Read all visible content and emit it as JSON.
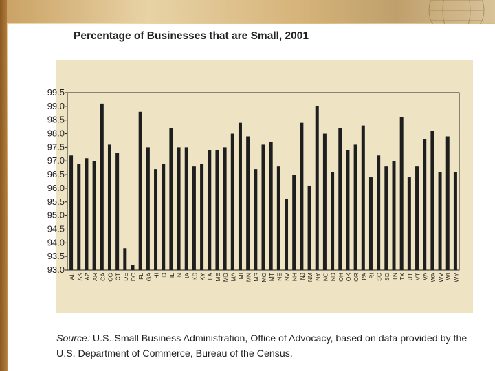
{
  "chart_data": {
    "type": "bar",
    "title": "Percentage of Businesses that are Small, 2001",
    "xlabel": "",
    "ylabel": "",
    "ylim": [
      93.0,
      99.5
    ],
    "yticks": [
      "99.5",
      "99.0",
      "98.5",
      "98.0",
      "97.5",
      "97.0",
      "96.5",
      "96.0",
      "95.5",
      "95.0",
      "94.5",
      "94.0",
      "93.5",
      "93.0"
    ],
    "categories": [
      "AL",
      "AK",
      "AZ",
      "AR",
      "CA",
      "CO",
      "CT",
      "DE",
      "DC",
      "FL",
      "GA",
      "HI",
      "ID",
      "IL",
      "IN",
      "IA",
      "KS",
      "KY",
      "LA",
      "ME",
      "MD",
      "MA",
      "MI",
      "MN",
      "MS",
      "MO",
      "MT",
      "NE",
      "NV",
      "NH",
      "NJ",
      "NM",
      "NY",
      "NC",
      "ND",
      "OH",
      "OK",
      "OR",
      "PA",
      "RI",
      "SC",
      "SD",
      "TN",
      "TX",
      "UT",
      "VT",
      "VA",
      "WA",
      "WV",
      "WI",
      "WY"
    ],
    "values": [
      97.2,
      96.9,
      97.1,
      97.0,
      99.1,
      97.6,
      97.3,
      93.8,
      93.2,
      98.8,
      97.5,
      96.7,
      96.9,
      98.2,
      97.5,
      97.5,
      96.8,
      96.9,
      97.4,
      97.4,
      97.5,
      98.0,
      98.4,
      97.9,
      96.7,
      97.6,
      97.7,
      96.8,
      95.6,
      96.5,
      98.4,
      96.1,
      99.0,
      98.0,
      96.6,
      98.2,
      97.4,
      97.6,
      98.3,
      96.4,
      97.2,
      96.8,
      97.0,
      98.6,
      96.4,
      96.8,
      97.8,
      98.1,
      96.6,
      97.9,
      96.6
    ],
    "grid": false,
    "bar_color": "#1e1e1e",
    "background": "#eee4c3"
  },
  "source": {
    "label": "Source:",
    "text": " U.S. Small Business Administration, Office of Advocacy, based on data provided by the U.S. Department of Commerce, Bureau of the Census."
  }
}
